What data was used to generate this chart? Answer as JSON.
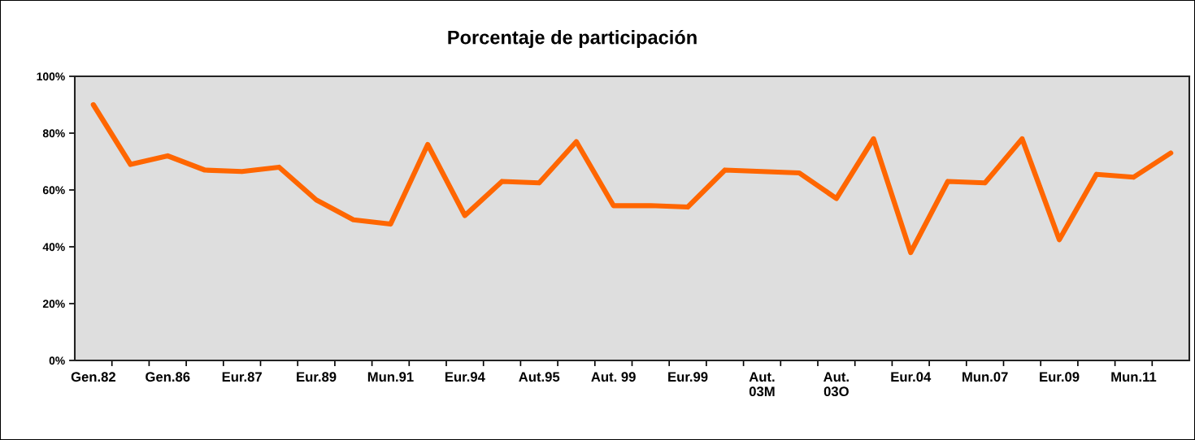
{
  "chart_data": {
    "type": "line",
    "title": "Porcentaje de participación",
    "categories": [
      "Gen.82",
      null,
      "Gen.86",
      null,
      "Eur.87",
      null,
      "Eur.89",
      null,
      "Mun.91",
      null,
      "Eur.94",
      null,
      "Aut.95",
      null,
      "Aut. 99",
      null,
      "Eur.99",
      null,
      "Aut.\n03M",
      null,
      "Aut.\n03O",
      null,
      "Eur.04",
      null,
      "Mun.07",
      null,
      "Eur.09",
      null,
      "Mun.11",
      null
    ],
    "series": [
      {
        "color": "#ff6600",
        "values": [
          90,
          69,
          72,
          67,
          66.5,
          68,
          56.5,
          49.5,
          48,
          76,
          51,
          63,
          62.5,
          77,
          54.5,
          54.5,
          54,
          67,
          66.5,
          66,
          57,
          78,
          38,
          63,
          62.5,
          78,
          42.5,
          65.5,
          64.5,
          73
        ]
      }
    ],
    "ylim": [
      0,
      100
    ],
    "yticks": [
      {
        "value": 0,
        "label": "0%"
      },
      {
        "value": 20,
        "label": "20%"
      },
      {
        "value": 40,
        "label": "40%"
      },
      {
        "value": 60,
        "label": "60%"
      },
      {
        "value": 80,
        "label": "80%"
      },
      {
        "value": 100,
        "label": "100%"
      }
    ],
    "grid": false,
    "legend": false,
    "marker": "none",
    "line_style": "solid"
  }
}
